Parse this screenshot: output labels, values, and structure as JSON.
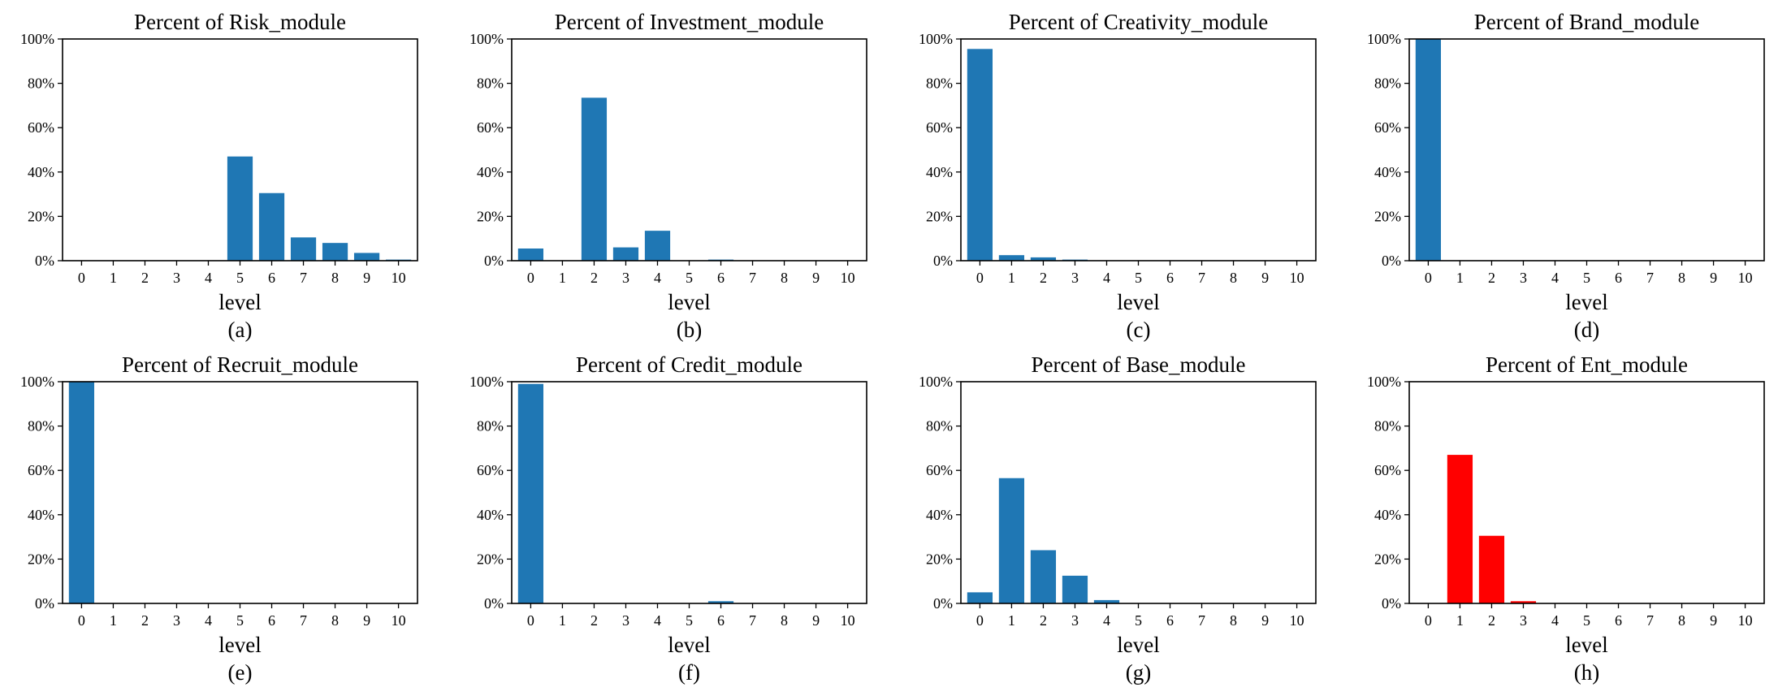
{
  "chart_data": [
    {
      "type": "bar",
      "title": "Percent of Risk_module",
      "xlabel": "level",
      "sublabel": "(a)",
      "categories": [
        "0",
        "1",
        "2",
        "3",
        "4",
        "5",
        "6",
        "7",
        "8",
        "9",
        "10"
      ],
      "values": [
        0,
        0,
        0,
        0,
        0,
        47,
        30.5,
        10.5,
        8,
        3.5,
        0.5
      ],
      "yticks": [
        "0%",
        "20%",
        "40%",
        "60%",
        "80%",
        "100%"
      ],
      "ylim": [
        0,
        100
      ],
      "color": "#1f77b4"
    },
    {
      "type": "bar",
      "title": "Percent of Investment_module",
      "xlabel": "level",
      "sublabel": "(b)",
      "categories": [
        "0",
        "1",
        "2",
        "3",
        "4",
        "5",
        "6",
        "7",
        "8",
        "9",
        "10"
      ],
      "values": [
        5.5,
        0,
        73.5,
        6,
        13.5,
        0,
        0.5,
        0,
        0,
        0,
        0
      ],
      "yticks": [
        "0%",
        "20%",
        "40%",
        "60%",
        "80%",
        "100%"
      ],
      "ylim": [
        0,
        100
      ],
      "color": "#1f77b4"
    },
    {
      "type": "bar",
      "title": "Percent of Creativity_module",
      "xlabel": "level",
      "sublabel": "(c)",
      "categories": [
        "0",
        "1",
        "2",
        "3",
        "4",
        "5",
        "6",
        "7",
        "8",
        "9",
        "10"
      ],
      "values": [
        95.5,
        2.5,
        1.5,
        0.5,
        0,
        0,
        0,
        0,
        0,
        0,
        0
      ],
      "yticks": [
        "0%",
        "20%",
        "40%",
        "60%",
        "80%",
        "100%"
      ],
      "ylim": [
        0,
        100
      ],
      "color": "#1f77b4"
    },
    {
      "type": "bar",
      "title": "Percent of Brand_module",
      "xlabel": "level",
      "sublabel": "(d)",
      "categories": [
        "0",
        "1",
        "2",
        "3",
        "4",
        "5",
        "6",
        "7",
        "8",
        "9",
        "10"
      ],
      "values": [
        100,
        0,
        0,
        0,
        0,
        0,
        0,
        0,
        0,
        0,
        0
      ],
      "yticks": [
        "0%",
        "20%",
        "40%",
        "60%",
        "80%",
        "100%"
      ],
      "ylim": [
        0,
        100
      ],
      "color": "#1f77b4"
    },
    {
      "type": "bar",
      "title": "Percent of Recruit_module",
      "xlabel": "level",
      "sublabel": "(e)",
      "categories": [
        "0",
        "1",
        "2",
        "3",
        "4",
        "5",
        "6",
        "7",
        "8",
        "9",
        "10"
      ],
      "values": [
        100,
        0,
        0,
        0,
        0,
        0,
        0,
        0,
        0,
        0,
        0
      ],
      "yticks": [
        "0%",
        "20%",
        "40%",
        "60%",
        "80%",
        "100%"
      ],
      "ylim": [
        0,
        100
      ],
      "color": "#1f77b4"
    },
    {
      "type": "bar",
      "title": "Percent of Credit_module",
      "xlabel": "level",
      "sublabel": "(f)",
      "categories": [
        "0",
        "1",
        "2",
        "3",
        "4",
        "5",
        "6",
        "7",
        "8",
        "9",
        "10"
      ],
      "values": [
        99,
        0,
        0,
        0,
        0,
        0,
        1,
        0,
        0,
        0,
        0
      ],
      "yticks": [
        "0%",
        "20%",
        "40%",
        "60%",
        "80%",
        "100%"
      ],
      "ylim": [
        0,
        100
      ],
      "color": "#1f77b4"
    },
    {
      "type": "bar",
      "title": "Percent of Base_module",
      "xlabel": "level",
      "sublabel": "(g)",
      "categories": [
        "0",
        "1",
        "2",
        "3",
        "4",
        "5",
        "6",
        "7",
        "8",
        "9",
        "10"
      ],
      "values": [
        5,
        56.5,
        24,
        12.5,
        1.5,
        0,
        0,
        0,
        0,
        0,
        0
      ],
      "yticks": [
        "0%",
        "20%",
        "40%",
        "60%",
        "80%",
        "100%"
      ],
      "ylim": [
        0,
        100
      ],
      "color": "#1f77b4"
    },
    {
      "type": "bar",
      "title": "Percent of Ent_module",
      "xlabel": "level",
      "sublabel": "(h)",
      "categories": [
        "0",
        "1",
        "2",
        "3",
        "4",
        "5",
        "6",
        "7",
        "8",
        "9",
        "10"
      ],
      "values": [
        0,
        67,
        30.5,
        1,
        0,
        0,
        0,
        0,
        0,
        0,
        0
      ],
      "yticks": [
        "0%",
        "20%",
        "40%",
        "60%",
        "80%",
        "100%"
      ],
      "ylim": [
        0,
        100
      ],
      "color": "#ff0000"
    }
  ]
}
